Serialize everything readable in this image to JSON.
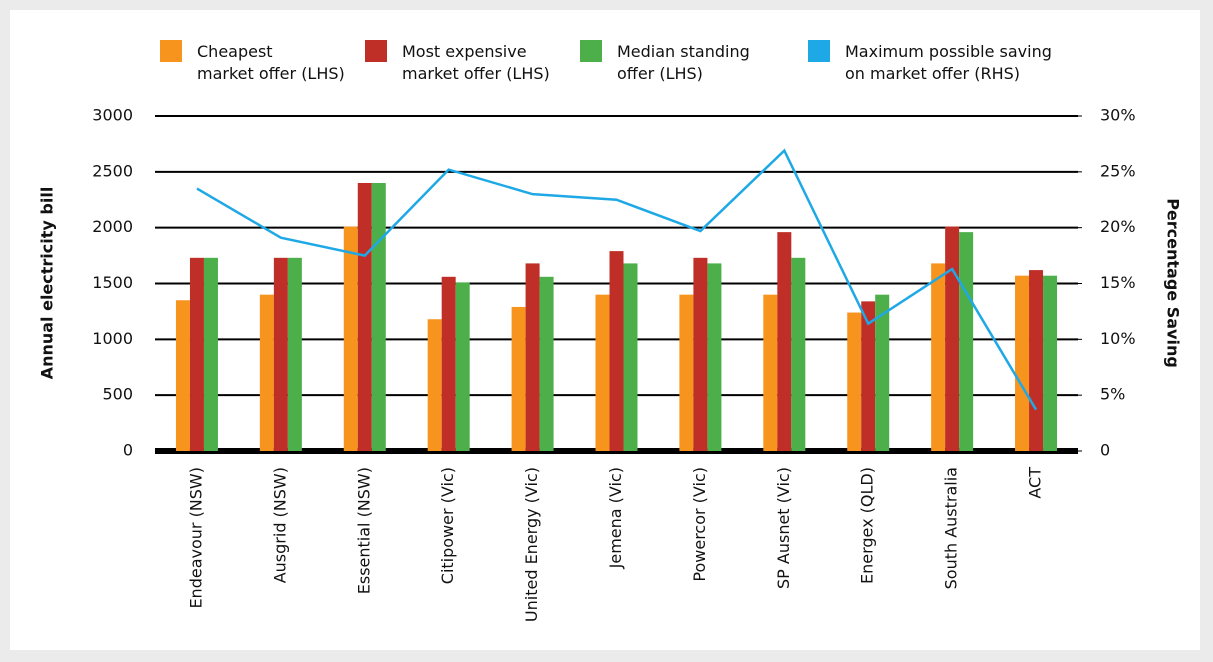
{
  "chart_data": {
    "type": "bar_line",
    "categories": [
      "Endeavour (NSW)",
      "Ausgrid (NSW)",
      "Essential (NSW)",
      "Citipower (Vic)",
      "United Energy (Vic)",
      "Jemena (Vic)",
      "Powercor (Vic)",
      "SP Ausnet (Vic)",
      "Energex (QLD)",
      "South Australia",
      "ACT"
    ],
    "series": [
      {
        "name": "Cheapest\nmarket offer (LHS)",
        "color": "#f7941d",
        "type": "bar",
        "values": [
          1350,
          1400,
          2010,
          1180,
          1290,
          1400,
          1400,
          1400,
          1240,
          1680,
          1570
        ]
      },
      {
        "name": "Most expensive\nmarket offer (LHS)",
        "color": "#bf2f27",
        "type": "bar",
        "values": [
          1730,
          1730,
          2400,
          1560,
          1680,
          1790,
          1730,
          1960,
          1340,
          2010,
          1620
        ]
      },
      {
        "name": "Median standing\noffer (LHS)",
        "color": "#4caf4a",
        "type": "bar",
        "values": [
          1730,
          1730,
          2400,
          1510,
          1560,
          1680,
          1680,
          1730,
          1400,
          1960,
          1570
        ]
      },
      {
        "name": "Maximum possible saving\non market offer (RHS)",
        "color": "#1ea9e6",
        "type": "line",
        "axis": "y2",
        "values": [
          23.5,
          19.1,
          17.5,
          25.2,
          23.0,
          22.5,
          19.7,
          26.9,
          11.4,
          16.3,
          3.7
        ]
      }
    ],
    "y_label": "Annual electricity bill",
    "y2_label": "Percentage Saving",
    "ylim": [
      0,
      3000
    ],
    "yticks": [
      0,
      500,
      1000,
      1500,
      2000,
      2500,
      3000
    ],
    "y2lim": [
      0,
      30
    ],
    "y2ticks": [
      0,
      {
        "value": 5,
        "label": "5%"
      },
      {
        "value": 10,
        "label": "10%"
      },
      {
        "value": 15,
        "label": "15%"
      },
      {
        "value": 20,
        "label": "20%"
      },
      {
        "value": 25,
        "label": "25%"
      },
      {
        "value": 30,
        "label": "30%"
      }
    ],
    "grid": true
  }
}
